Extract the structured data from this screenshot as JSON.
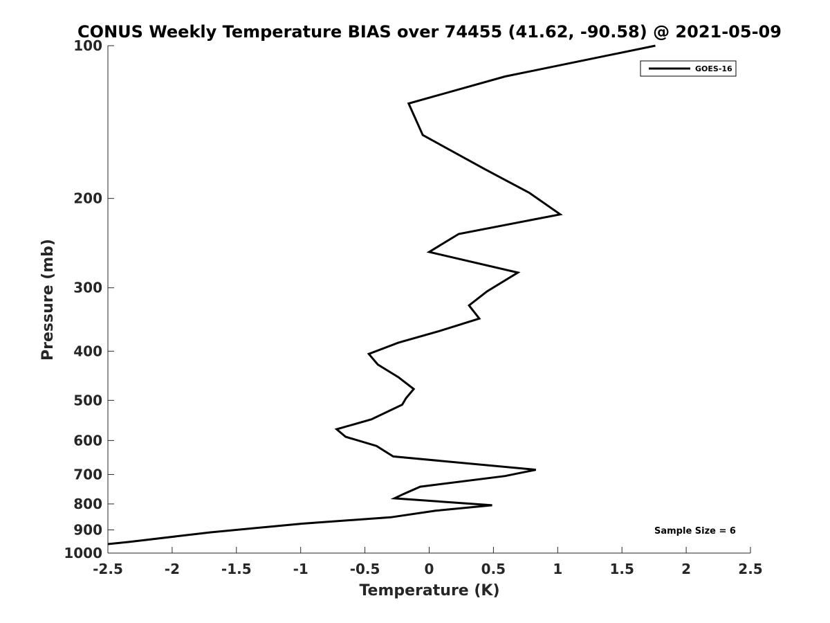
{
  "chart_data": {
    "type": "line",
    "title": "CONUS Weekly Temperature BIAS over 74455 (41.62, -90.58) @ 2021-05-09",
    "xlabel": "Temperature (K)",
    "ylabel": "Pressure (mb)",
    "xlim": [
      -2.5,
      2.5
    ],
    "ylim": [
      1000,
      100
    ],
    "y_scale": "log",
    "y_reversed": true,
    "grid": false,
    "legend_position": "top-right",
    "x_ticks": [
      -2.5,
      -2,
      -1.5,
      -1,
      -0.5,
      0,
      0.5,
      1,
      1.5,
      2,
      2.5
    ],
    "x_tick_labels": [
      "-2.5",
      "-2",
      "-1.5",
      "-1",
      "-0.5",
      "0",
      "0.5",
      "1",
      "1.5",
      "2",
      "2.5"
    ],
    "y_ticks": [
      100,
      200,
      300,
      400,
      500,
      600,
      700,
      800,
      900,
      1000
    ],
    "y_tick_labels": [
      "100",
      "200",
      "300",
      "400",
      "500",
      "600",
      "700",
      "800",
      "900",
      "1000"
    ],
    "annotation": "Sample Size = 6",
    "series_color": "#000000",
    "series": [
      {
        "name": "GOES-16",
        "x": [
          1.76,
          0.59,
          -0.16,
          -0.05,
          0.43,
          0.78,
          1.02,
          0.23,
          0.0,
          0.69,
          0.45,
          0.31,
          0.39,
          0.08,
          -0.24,
          -0.47,
          -0.4,
          -0.24,
          -0.12,
          -0.18,
          -0.21,
          -0.45,
          -0.72,
          -0.65,
          -0.41,
          -0.28,
          0.83,
          0.59,
          -0.07,
          -0.2,
          -0.27,
          0.49,
          0.05,
          -0.3,
          -0.99,
          -1.7,
          -2.33,
          -2.5
        ],
        "y": [
          100,
          115,
          130,
          150,
          175,
          195,
          215,
          235,
          255,
          280,
          305,
          325,
          345,
          365,
          385,
          405,
          425,
          450,
          475,
          495,
          510,
          545,
          570,
          590,
          615,
          645,
          685,
          705,
          740,
          765,
          780,
          805,
          825,
          850,
          875,
          910,
          950,
          960
        ]
      }
    ]
  }
}
